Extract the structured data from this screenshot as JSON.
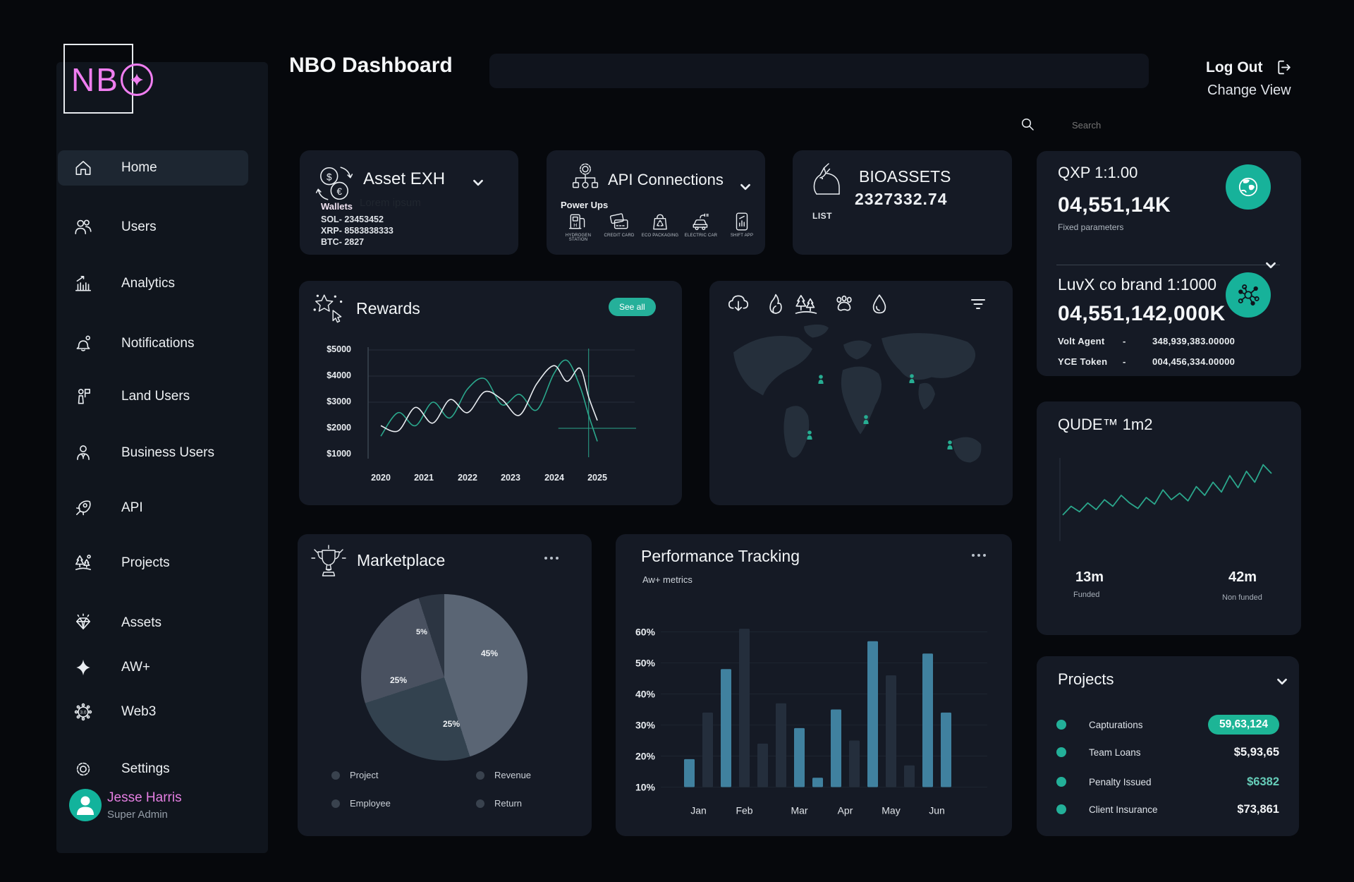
{
  "theme": {
    "accent_teal": "#1db596",
    "accent_pink": "#f07ef0",
    "bar_teal": "#40819f",
    "bar_dark": "#242e3c",
    "line_teal": "#2ba78c",
    "card_bg": "#151a25",
    "sidebar_bg": "#10151d",
    "page_bg": "#06080c"
  },
  "logo": {
    "text_nb": "NB"
  },
  "header": {
    "title": "NBO Dashboard",
    "search_placeholder": "Search",
    "logout": "Log Out",
    "change_view": "Change View"
  },
  "sidebar": {
    "items": [
      {
        "label": "Home"
      },
      {
        "label": "Users"
      },
      {
        "label": "Analytics"
      },
      {
        "label": "Notifications"
      },
      {
        "label": "Land Users"
      },
      {
        "label": "Business Users"
      },
      {
        "label": "API"
      },
      {
        "label": "Projects"
      },
      {
        "label": "Assets"
      },
      {
        "label": "AW+"
      },
      {
        "label": "Web3"
      },
      {
        "label": "Settings"
      }
    ],
    "user": {
      "name": "Jesse Harris",
      "role": "Super Admin"
    }
  },
  "asset_exh": {
    "title": "Asset EXH",
    "watermark": "Lorem ipsum",
    "section": "Wallets",
    "wallets": [
      "SOL- 23453452",
      "XRP- 8583838333",
      "BTC- 2827"
    ]
  },
  "api_connections": {
    "title": "API Connections",
    "section": "Power Ups",
    "power_ups": [
      "HYDROGEN STATION",
      "CREDIT CARD",
      "ECO PACKAGING",
      "ELECTRIC CAR",
      "SHIFT APP"
    ]
  },
  "bioassets": {
    "title": "BIOASSETS",
    "value": "2327332.74",
    "list_label": "LIST"
  },
  "rewards": {
    "title": "Rewards",
    "see_all": "See all"
  },
  "marketplace": {
    "title": "Marketplace"
  },
  "performance": {
    "title": "Performance Tracking",
    "subtitle": "Aw+ metrics"
  },
  "qxp": {
    "title": "QXP 1:1.00",
    "value": "04,551,14K",
    "subtitle": "Fixed parameters"
  },
  "luvx": {
    "title": "LuvX co brand 1:1000",
    "value": "04,551,142,000K",
    "rows": [
      {
        "label": "Volt Agent",
        "sep": "-",
        "value": "348,939,383.00000"
      },
      {
        "label": "YCE Token",
        "sep": "-",
        "value": "004,456,334.00000"
      }
    ]
  },
  "qude": {
    "title": "QUDE™ 1m2",
    "funded": {
      "value": "13m",
      "label": "Funded"
    },
    "nonfunded": {
      "value": "42m",
      "label": "Non funded"
    }
  },
  "projects_card": {
    "title": "Projects",
    "rows": [
      {
        "label": "Capturations",
        "value": "59,63,124"
      },
      {
        "label": "Team Loans",
        "value": "$5,93,65"
      },
      {
        "label": "Penalty Issued",
        "value": "$6382"
      },
      {
        "label": "Client Insurance",
        "value": "$73,861"
      }
    ]
  },
  "icon_glyphs": {
    "dollar": "$",
    "euro": "€",
    "hydrogen": "H",
    "web3": "3.0"
  },
  "chart_data": [
    {
      "id": "rewards",
      "type": "line",
      "title": "Rewards",
      "x_ticks": [
        "2020",
        "2021",
        "2022",
        "2023",
        "2024",
        "2025"
      ],
      "y_ticks": [
        "$5000",
        "$4000",
        "$3000",
        "$2000",
        "$1000"
      ],
      "xlim": [
        2020,
        2025
      ],
      "ylim": [
        1000,
        5000
      ],
      "grid": true,
      "legend_position": "none",
      "series": [
        {
          "name": "primary",
          "color": "#2ba78c",
          "x": [
            2020,
            2020.4,
            2020.8,
            2021.2,
            2021.6,
            2022,
            2022.4,
            2022.8,
            2023.2,
            2023.6,
            2024,
            2024.3,
            2024.6,
            2024.8,
            2025
          ],
          "y": [
            1700,
            2600,
            2100,
            3000,
            2400,
            3500,
            3900,
            2900,
            3300,
            2700,
            4100,
            4600,
            3600,
            2500,
            1500
          ]
        },
        {
          "name": "secondary",
          "color": "#e9edf1",
          "x": [
            2020,
            2020.4,
            2020.8,
            2021.2,
            2021.6,
            2022,
            2022.4,
            2022.8,
            2023.2,
            2023.6,
            2024,
            2024.3,
            2024.6,
            2024.8,
            2025
          ],
          "y": [
            2100,
            1900,
            2800,
            2200,
            3100,
            2600,
            3400,
            3100,
            2500,
            3700,
            4400,
            3800,
            4300,
            3200,
            2300
          ]
        }
      ],
      "crosshair": {
        "x": 2024.8,
        "y": 2000
      }
    },
    {
      "id": "marketplace",
      "type": "pie",
      "labels": [
        "45%",
        "25%",
        "25%",
        "5%"
      ],
      "values": [
        45,
        25,
        25,
        5
      ],
      "colors": [
        "#5a6574",
        "#33424f",
        "#495160",
        "#2c3542"
      ],
      "legend": [
        "Project",
        "Employee",
        "Revenue",
        "Return"
      ],
      "legend_position": "bottom"
    },
    {
      "id": "performance",
      "type": "bar",
      "title": "Performance Tracking",
      "subtitle": "Aw+ metrics",
      "y_ticks": [
        "60%",
        "50%",
        "40%",
        "30%",
        "20%",
        "10%"
      ],
      "ylim": [
        10,
        62
      ],
      "months": [
        "Jan",
        "Feb",
        "Mar",
        "Apr",
        "May",
        "Jun"
      ],
      "groups": [
        2,
        3,
        3,
        2,
        3,
        2
      ],
      "values": [
        19,
        34,
        48,
        61,
        24,
        37,
        29,
        13,
        35,
        25,
        57,
        46,
        17,
        53,
        34
      ],
      "colors": [
        "teal",
        "dark",
        "teal",
        "dark",
        "dark",
        "dark",
        "teal",
        "teal",
        "teal",
        "dark",
        "teal",
        "dark",
        "dark",
        "teal",
        "teal"
      ],
      "teal_hex": "#40819f",
      "dark_hex": "#242e3c",
      "grid": true
    },
    {
      "id": "qude",
      "type": "line",
      "color": "#2ba78c",
      "ylim": [
        0,
        80
      ],
      "values": [
        22,
        30,
        25,
        33,
        27,
        36,
        30,
        40,
        33,
        28,
        38,
        32,
        45,
        36,
        42,
        35,
        48,
        40,
        52,
        43,
        58,
        47,
        62,
        52,
        68,
        60
      ]
    }
  ]
}
